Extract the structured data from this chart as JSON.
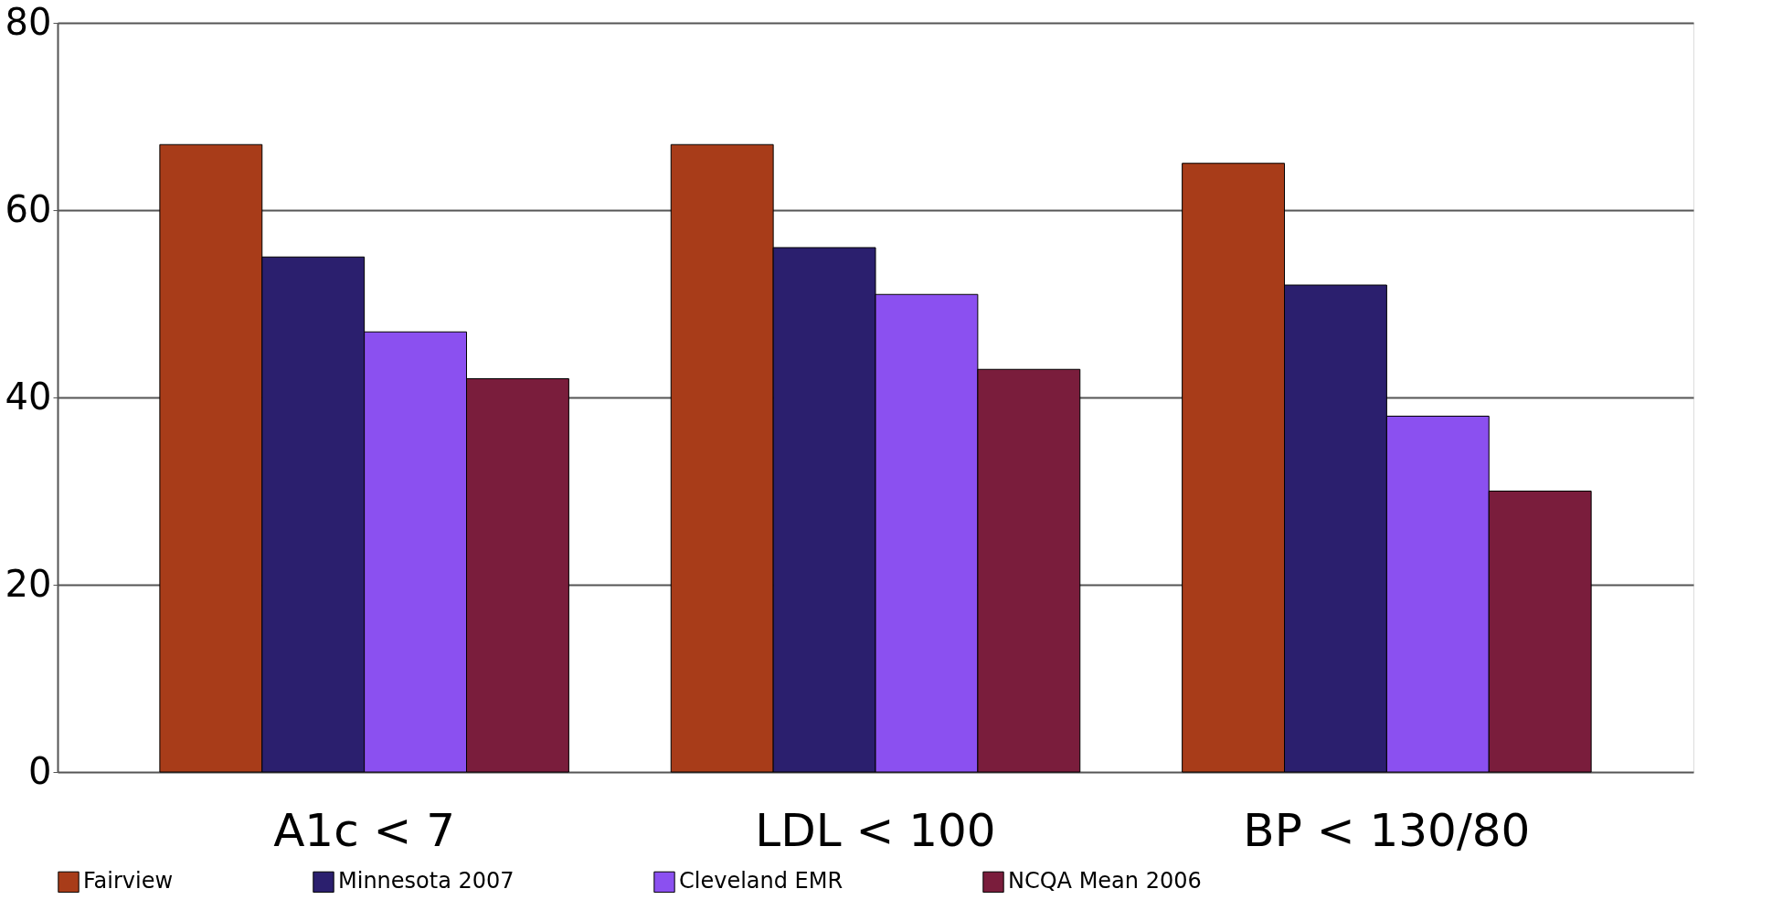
{
  "chart_data": {
    "type": "bar",
    "categories": [
      "A1c < 7",
      "LDL < 100",
      "BP < 130/80"
    ],
    "series": [
      {
        "name": "Fairview",
        "color": "#a83c19",
        "values": [
          67,
          67,
          65
        ]
      },
      {
        "name": "Minnesota 2007",
        "color": "#2b1f6e",
        "values": [
          55,
          56,
          52
        ]
      },
      {
        "name": "Cleveland EMR",
        "color": "#8b50f0",
        "values": [
          47,
          51,
          38
        ]
      },
      {
        "name": "NCQA Mean 2006",
        "color": "#7a1d3c",
        "values": [
          42,
          43,
          30
        ]
      }
    ],
    "ylim": [
      0,
      80
    ],
    "yticks": [
      0,
      20,
      40,
      60,
      80
    ],
    "grid": "y",
    "legend": "bottom"
  }
}
